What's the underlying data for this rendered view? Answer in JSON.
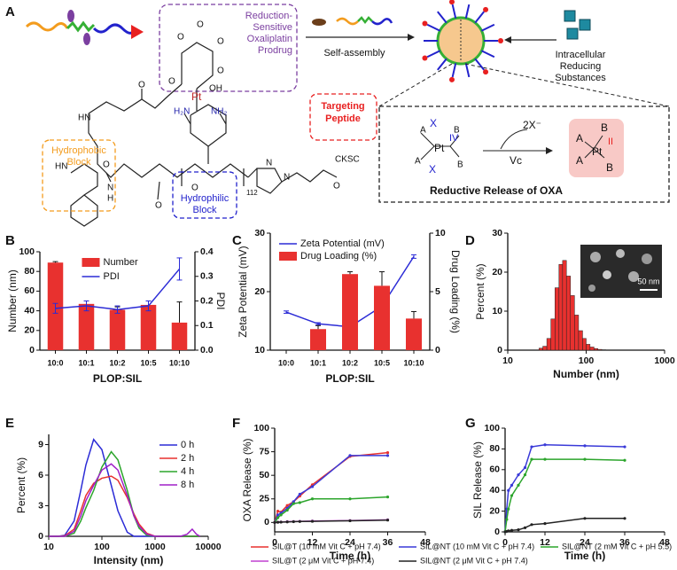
{
  "diagram": {
    "panel_labels": [
      "A",
      "B",
      "C",
      "D",
      "E",
      "F",
      "G"
    ],
    "prodrug": [
      "Reduction-",
      "Sensitive",
      "Oxaliplatin",
      "Prodrug"
    ],
    "self_assembly": "Self-assembly",
    "reducing": [
      "Intracellular",
      "Reducing",
      "Substances"
    ],
    "hydrophobic": [
      "Hydrophobic",
      "Block"
    ],
    "targeting": [
      "Targeting",
      "Peptide"
    ],
    "hydrophilic": [
      "Hydrophilic",
      "Block"
    ],
    "release_title": "Reductive Release of OXA",
    "chem": [
      "HN",
      "O",
      "O",
      "O",
      "O",
      "O",
      "O",
      "Pt",
      "OH",
      "H₂N",
      "NH₂",
      "HN",
      "O",
      "N",
      "H",
      "O",
      "O",
      "N",
      "N",
      "112",
      "O",
      "CKSC"
    ],
    "reaction": [
      "A",
      "X",
      "B",
      "Pt",
      "IV",
      "A",
      "X",
      "B",
      "2X⁻",
      "Vc",
      "A",
      "B",
      "Pt",
      "II",
      "A",
      "B"
    ]
  },
  "chart_data": [
    {
      "type": "combo",
      "xlabel": "PLOP:SIL",
      "ylabel": "Number (nm)",
      "y2label": "PDI",
      "categories": [
        "10:0",
        "10:1",
        "10:2",
        "10:5",
        "10:10"
      ],
      "series": [
        {
          "name": "Number",
          "kind": "bar",
          "color": "#e8312f",
          "values": [
            89,
            47,
            41,
            46,
            28
          ],
          "errors": [
            1,
            3,
            3,
            4,
            21
          ]
        },
        {
          "name": "PDI",
          "kind": "line",
          "axis": "y2",
          "color": "#2b2bd6",
          "values": [
            0.17,
            0.18,
            0.165,
            0.18,
            0.33
          ],
          "errors": [
            0.02,
            0.02,
            0.015,
            0.02,
            0.045
          ]
        }
      ],
      "ylim": [
        0,
        100
      ],
      "yticks": [
        0,
        20,
        40,
        60,
        80,
        100
      ],
      "y2lim": [
        0,
        0.4
      ],
      "y2ticks": [
        {
          "value": 0,
          "label": "0.0"
        },
        0.1,
        0.2,
        0.3,
        0.4
      ],
      "legend": "upper center"
    },
    {
      "type": "combo",
      "xlabel": "PLOP:SIL",
      "ylabel": "Zeta Potential (mV)",
      "y2label": "Drug Loading (%)",
      "categories": [
        "10:0",
        "10:1",
        "10:2",
        "10:5",
        "10:10"
      ],
      "series": [
        {
          "name": "Zeta Potential (mV)",
          "kind": "line",
          "color": "#2b2bd6",
          "values": [
            16.5,
            14.5,
            14,
            17.5,
            26
          ],
          "errors": [
            0.2,
            0.2,
            0.2,
            0.3,
            0.3
          ]
        },
        {
          "name": "Drug Loading (%)",
          "kind": "bar",
          "axis": "y2",
          "color": "#e8312f",
          "values": [
            0,
            1.8,
            6.5,
            5.5,
            2.7
          ],
          "errors": [
            0,
            0.3,
            0.2,
            1.2,
            0.6
          ]
        }
      ],
      "ylim": [
        10,
        30
      ],
      "yticks": [
        10,
        20,
        30
      ],
      "y2lim": [
        0,
        10
      ],
      "y2ticks": [
        0,
        5,
        10
      ],
      "legend": "upper left"
    },
    {
      "type": "histogram",
      "xlabel": "Number (nm)",
      "ylabel": "Percent (%)",
      "log_x": true,
      "bins": [
        25,
        28,
        31.5,
        35.5,
        40,
        45,
        50,
        56,
        63,
        71,
        80,
        90,
        100,
        112,
        126,
        141,
        158,
        178
      ],
      "values": [
        0.5,
        1,
        3,
        8,
        16,
        22,
        23,
        19,
        14,
        9,
        5,
        3,
        1.5,
        0.8,
        0.4,
        0.2,
        0.1
      ],
      "color": "#e8312f",
      "xlim": [
        10,
        1000
      ],
      "xticks": [
        10,
        100,
        1000
      ],
      "ylim": [
        0,
        30
      ],
      "yticks": [
        0,
        10,
        20,
        30
      ],
      "annotation": "50 nm"
    },
    {
      "type": "line",
      "xlabel": "Intensity (nm)",
      "ylabel": "Percent (%)",
      "log_x": true,
      "x": [
        10,
        15,
        20,
        30,
        40,
        50,
        70,
        100,
        150,
        200,
        300,
        400,
        500,
        700,
        1000,
        1500,
        2000,
        3000,
        4000,
        5000,
        6000,
        7000
      ],
      "series": [
        {
          "name": "0 h",
          "color": "#2b2bd6",
          "values": [
            0,
            0,
            0.1,
            1.5,
            4.5,
            7,
            9.5,
            8.5,
            5,
            2.5,
            0.4,
            0,
            0,
            0,
            0,
            0,
            0,
            0,
            0,
            0,
            0,
            0
          ]
        },
        {
          "name": "2 h",
          "color": "#e8312f",
          "values": [
            0,
            0,
            0.05,
            0.7,
            2.5,
            4,
            5.2,
            5.7,
            5.9,
            5.5,
            3.8,
            2.2,
            1.2,
            0.3,
            0,
            0,
            0,
            0,
            0,
            0,
            0,
            0
          ]
        },
        {
          "name": "4 h",
          "color": "#2ca52c",
          "values": [
            0,
            0,
            0,
            0.3,
            1.5,
            2.8,
            4.5,
            6.8,
            8.3,
            7.5,
            4.5,
            2,
            0.8,
            0.1,
            0,
            0,
            0,
            0,
            0,
            0,
            0,
            0
          ]
        },
        {
          "name": "8 h",
          "color": "#a020c8",
          "values": [
            0,
            0,
            0,
            0.5,
            2,
            3.5,
            5,
            6.5,
            7.1,
            6.5,
            4,
            2,
            1,
            0.2,
            0,
            0,
            0,
            0,
            0.2,
            0.7,
            0.2,
            0
          ]
        }
      ],
      "xlim": [
        10,
        10000
      ],
      "xticks": [
        10,
        100,
        1000,
        10000
      ],
      "ylim": [
        0,
        10
      ],
      "yticks": [
        0,
        3,
        6,
        9
      ],
      "legend": "upper right"
    },
    {
      "type": "line",
      "xlabel": "Time (h)",
      "ylabel": "OXA Release (%)",
      "markers": true,
      "x": [
        0,
        1,
        2,
        4,
        6,
        8,
        12,
        24,
        36
      ],
      "series": [
        {
          "name": "SIL@T (10 mM Vit C + pH 7.4)",
          "color": "#e8312f",
          "values": [
            0,
            12,
            11,
            18,
            22,
            28,
            40,
            70,
            74
          ]
        },
        {
          "name": "SIL@NT (10 mM Vit C + pH 7.4)",
          "color": "#3a3ad8",
          "values": [
            0,
            8,
            10,
            15,
            22,
            30,
            38,
            71,
            71
          ]
        },
        {
          "name": "SIL@NT (2 mM Vit C + pH 5.5)",
          "color": "#2ca52c",
          "values": [
            0,
            5,
            8,
            13,
            20,
            21,
            25,
            25,
            27
          ]
        },
        {
          "name": "SIL@T (2 μM Vit C + pH 7.4)",
          "color": "#c040d0",
          "values": [
            0,
            0.3,
            0.5,
            0.8,
            1,
            1.2,
            1.5,
            2,
            2.8
          ]
        },
        {
          "name": "SIL@NT (2 μM Vit C + pH 7.4)",
          "color": "#222222",
          "values": [
            0,
            0.2,
            0.4,
            0.6,
            0.8,
            1,
            1.2,
            1.8,
            2.5
          ]
        }
      ],
      "xlim": [
        0,
        48
      ],
      "xticks": [
        0,
        12,
        24,
        36,
        48
      ],
      "ylim": [
        -10,
        100
      ],
      "yticks": [
        0,
        25,
        50,
        75,
        100
      ],
      "legend": "below"
    },
    {
      "type": "line",
      "xlabel": "Time (h)",
      "ylabel": "SIL Release (%)",
      "markers": true,
      "x": [
        0,
        0.5,
        1,
        2,
        4,
        6,
        8,
        12,
        24,
        36
      ],
      "series": [
        {
          "color": "#3a3ad8",
          "values": [
            0,
            22,
            40,
            45,
            55,
            62,
            82,
            84,
            83,
            82
          ]
        },
        {
          "color": "#2ca52c",
          "values": [
            0,
            12,
            22,
            35,
            45,
            55,
            70,
            70,
            70,
            69
          ]
        },
        {
          "color": "#222222",
          "values": [
            0,
            0.5,
            1,
            1.5,
            2,
            4,
            7,
            8,
            13,
            13
          ]
        }
      ],
      "xlim": [
        0,
        48
      ],
      "xticks": [
        0,
        12,
        24,
        36,
        48
      ],
      "ylim": [
        0,
        100
      ],
      "yticks": [
        0,
        20,
        40,
        60,
        80,
        100
      ]
    }
  ]
}
